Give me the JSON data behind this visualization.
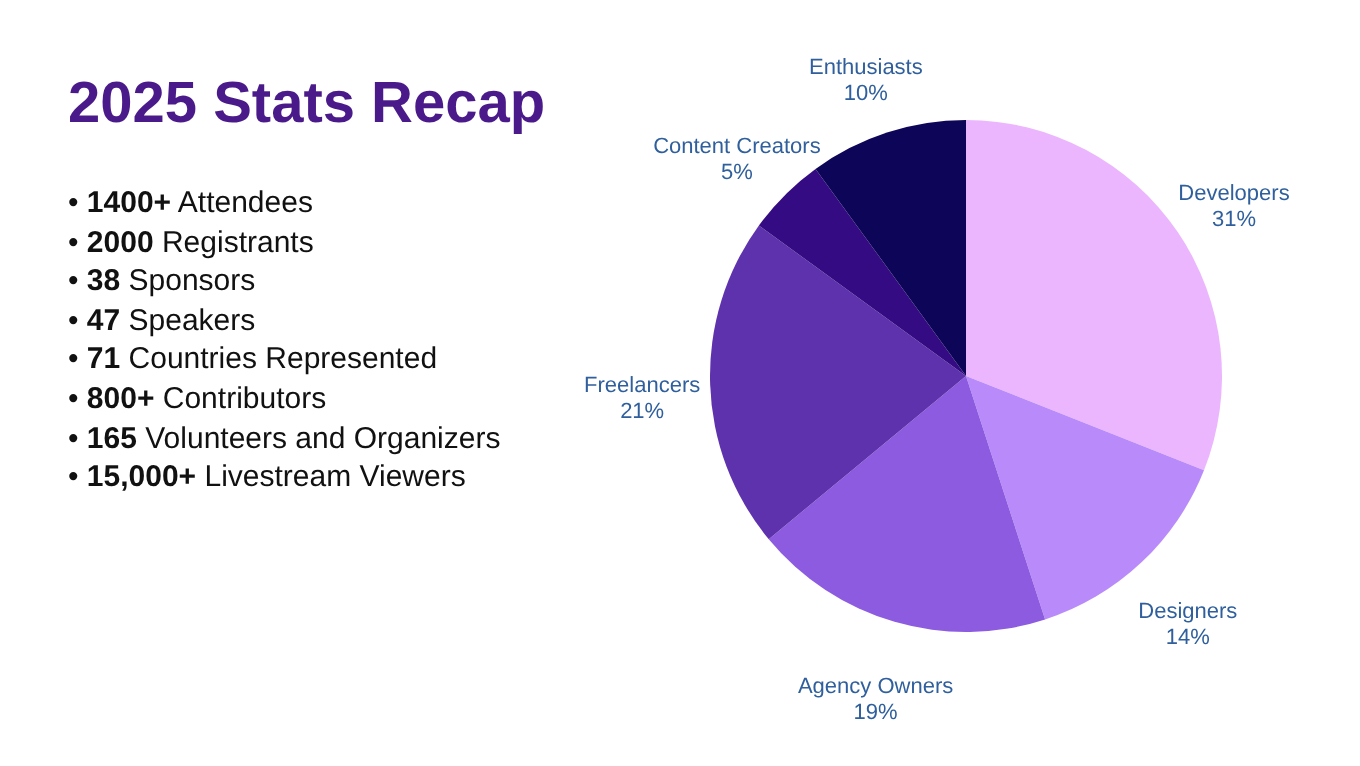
{
  "chart_data": {
    "type": "pie",
    "title": "2025 Stats Recap",
    "annotations": [
      "• 1400+ Attendees",
      "• 2000 Registrants",
      "• 38 Sponsors",
      "• 47 Speakers",
      "• 71 Countries Represented",
      "• 800+ Contributors",
      "• 165 Volunteers and Organizers",
      "• 15,000+ Livestream Viewers"
    ],
    "categories": [
      "Developers",
      "Designers",
      "Agency Owners",
      "Freelancers",
      "Content Creators",
      "Enthusiasts"
    ],
    "values": [
      31,
      14,
      19,
      21,
      5,
      10
    ],
    "value_labels": [
      "31%",
      "14%",
      "19%",
      "21%",
      "5%",
      "10%"
    ],
    "colors": [
      "#ebb6fe",
      "#b98bfa",
      "#8c5be0",
      "#5e31ad",
      "#340b82",
      "#0d0558"
    ]
  }
}
